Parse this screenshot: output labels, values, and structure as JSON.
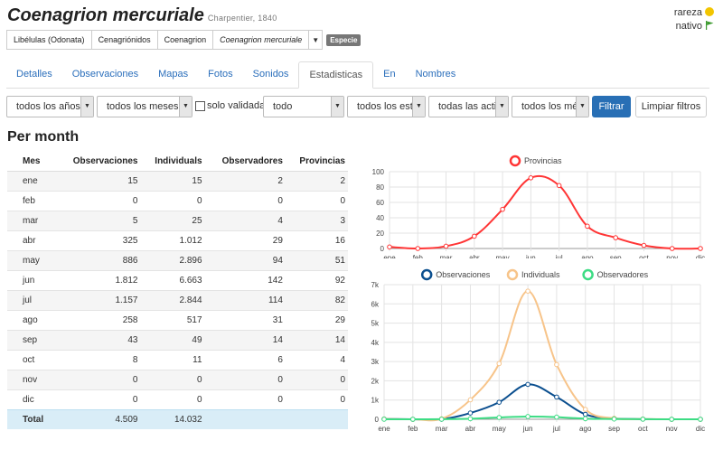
{
  "species": {
    "name": "Coenagrion mercuriale",
    "author": "Charpentier, 1840"
  },
  "status": {
    "rarity_label": "rareza",
    "origin_label": "nativo",
    "rarity_color": "#f2c500",
    "origin_color": "#3c9a2e"
  },
  "breadcrumb": {
    "items": [
      "Libélulas (Odonata)",
      "Cenagriónidos",
      "Coenagrion",
      "Coenagrion mercuriale"
    ],
    "badge": "Especie"
  },
  "tabs": [
    {
      "label": "Detalles"
    },
    {
      "label": "Observaciones"
    },
    {
      "label": "Mapas"
    },
    {
      "label": "Fotos"
    },
    {
      "label": "Sonidos"
    },
    {
      "label": "Estadisticas",
      "active": true
    },
    {
      "label": "En"
    },
    {
      "label": "Nombres"
    }
  ],
  "filters": {
    "years": "todos los años",
    "months": "todos los meses",
    "validated_label": "solo validadas",
    "scope": "todo",
    "stages": "todos los estadios",
    "activities": "todas las actividades",
    "methods": "todos los métodos",
    "filter_button": "Filtrar",
    "clear_button": "Limpiar filtros"
  },
  "section_title": "Per month",
  "table": {
    "headers": [
      "Mes",
      "Observaciones",
      "Individuals",
      "Observadores",
      "Provincias"
    ],
    "rows": [
      [
        "ene",
        "15",
        "15",
        "2",
        "2"
      ],
      [
        "feb",
        "0",
        "0",
        "0",
        "0"
      ],
      [
        "mar",
        "5",
        "25",
        "4",
        "3"
      ],
      [
        "abr",
        "325",
        "1.012",
        "29",
        "16"
      ],
      [
        "may",
        "886",
        "2.896",
        "94",
        "51"
      ],
      [
        "jun",
        "1.812",
        "6.663",
        "142",
        "92"
      ],
      [
        "jul",
        "1.157",
        "2.844",
        "114",
        "82"
      ],
      [
        "ago",
        "258",
        "517",
        "31",
        "29"
      ],
      [
        "sep",
        "43",
        "49",
        "14",
        "14"
      ],
      [
        "oct",
        "8",
        "11",
        "6",
        "4"
      ],
      [
        "nov",
        "0",
        "0",
        "0",
        "0"
      ],
      [
        "dic",
        "0",
        "0",
        "0",
        "0"
      ]
    ],
    "total": [
      "Total",
      "4.509",
      "14.032",
      "",
      ""
    ]
  },
  "chart_data": [
    {
      "type": "line",
      "categories": [
        "ene",
        "feb",
        "mar",
        "abr",
        "may",
        "jun",
        "jul",
        "ago",
        "sep",
        "oct",
        "nov",
        "dic"
      ],
      "series": [
        {
          "name": "Provincias",
          "values": [
            2,
            0,
            3,
            16,
            51,
            92,
            82,
            29,
            14,
            4,
            0,
            0
          ],
          "color": "#ff3535"
        }
      ],
      "ylim": [
        0,
        100
      ],
      "yticks": [
        "0",
        "20",
        "40",
        "60",
        "80",
        "100"
      ],
      "legend": "top",
      "grid": true
    },
    {
      "type": "line",
      "categories": [
        "ene",
        "feb",
        "mar",
        "abr",
        "may",
        "jun",
        "jul",
        "ago",
        "sep",
        "oct",
        "nov",
        "dic"
      ],
      "series": [
        {
          "name": "Observaciones",
          "values": [
            15,
            0,
            5,
            325,
            886,
            1812,
            1157,
            258,
            43,
            8,
            0,
            0
          ],
          "color": "#0b4f8f"
        },
        {
          "name": "Individuals",
          "values": [
            15,
            0,
            25,
            1012,
            2896,
            6663,
            2844,
            517,
            49,
            11,
            0,
            0
          ],
          "color": "#f7c48a"
        },
        {
          "name": "Observadores",
          "values": [
            2,
            0,
            4,
            29,
            94,
            142,
            114,
            31,
            14,
            6,
            0,
            0
          ],
          "color": "#3ddc84"
        }
      ],
      "ylim": [
        0,
        7000
      ],
      "yticks": [
        "0",
        "1k",
        "2k",
        "3k",
        "4k",
        "5k",
        "6k",
        "7k"
      ],
      "legend": "top",
      "grid": true
    }
  ]
}
